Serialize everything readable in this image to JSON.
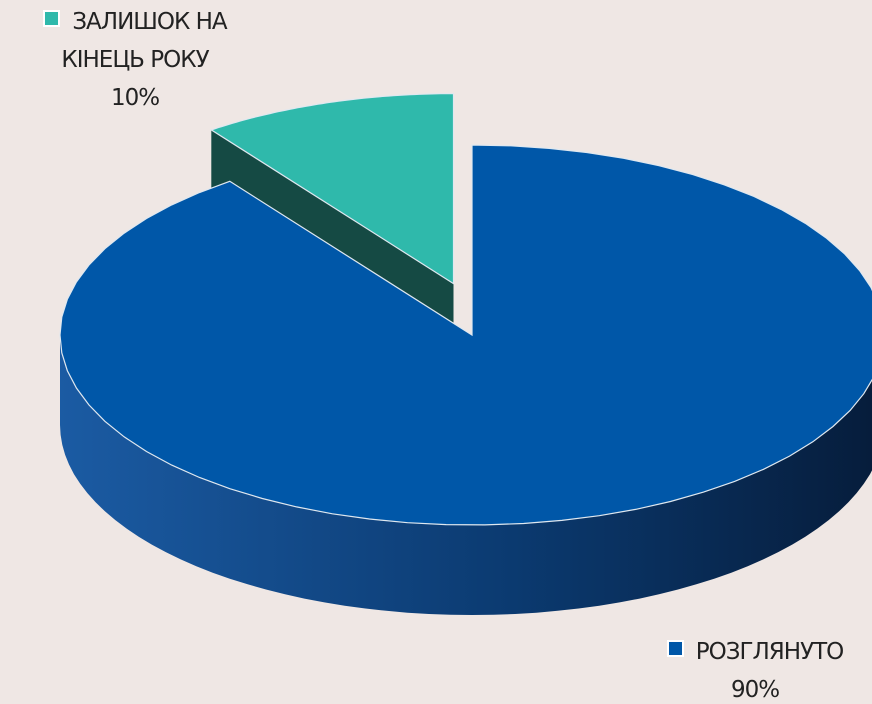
{
  "chart_data": {
    "type": "pie3d",
    "categories": [
      "ЗАЛИШОК НА КІНЕЦЬ РОКУ",
      "РОЗГЛЯНУТО"
    ],
    "values": [
      10,
      90
    ],
    "value_labels": [
      "10%",
      "90%"
    ],
    "colors": [
      "#2fb9ab",
      "#0057a8"
    ]
  }
}
